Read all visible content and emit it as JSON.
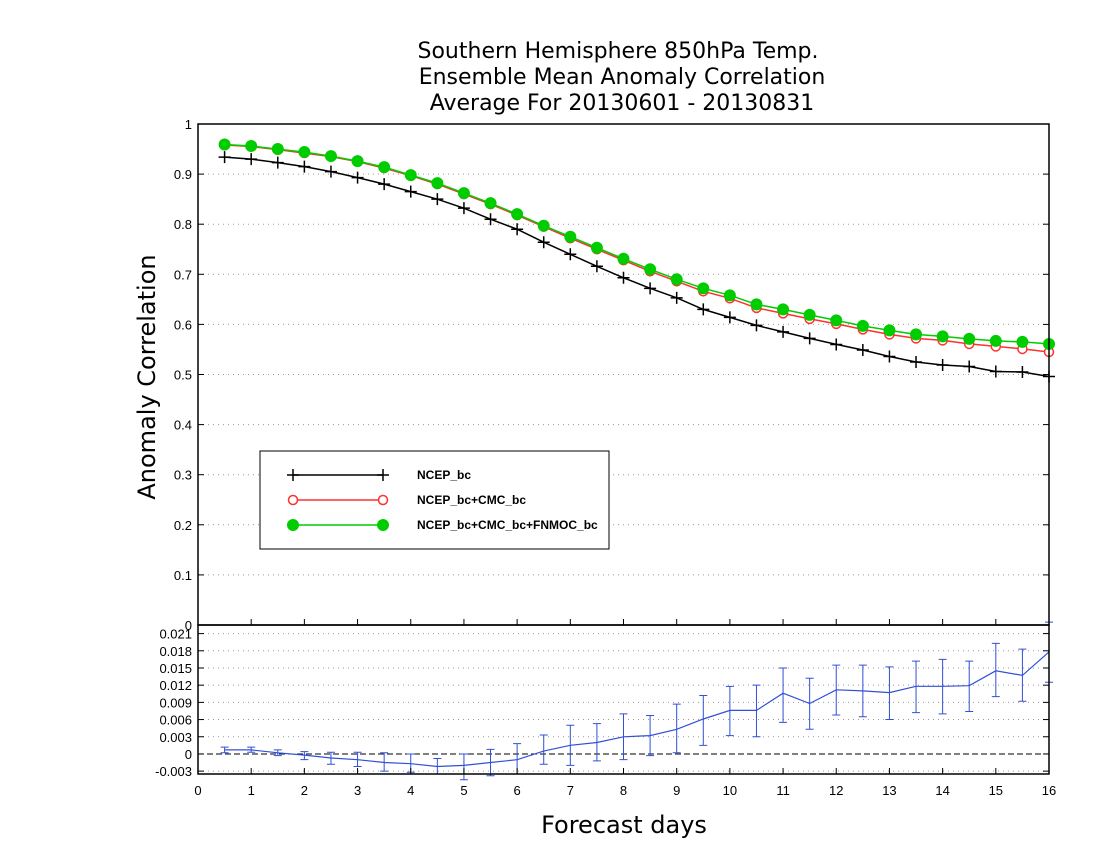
{
  "chart_data": {
    "type": "line",
    "title": [
      "Southern Hemisphere 850hPa Temp.",
      "Ensemble Mean Anomaly Correlation",
      "Average For 20130601 - 20130831"
    ],
    "xlabel": "Forecast days",
    "ylabel": "Anomaly Correlation",
    "xlim": [
      0,
      16
    ],
    "x_ticks": [
      "0",
      "1",
      "2",
      "3",
      "4",
      "5",
      "6",
      "7",
      "8",
      "9",
      "10",
      "11",
      "12",
      "13",
      "14",
      "15",
      "16"
    ],
    "top_panel": {
      "ylim": [
        0,
        1
      ],
      "y_ticks": [
        "0",
        "0.1",
        "0.2",
        "0.3",
        "0.4",
        "0.5",
        "0.6",
        "0.7",
        "0.8",
        "0.9",
        "1"
      ],
      "grid": "dotted horizontal",
      "legend_position": "lower-left",
      "x": [
        0.5,
        1,
        1.5,
        2,
        2.5,
        3,
        3.5,
        4,
        4.5,
        5,
        5.5,
        6,
        6.5,
        7,
        7.5,
        8,
        8.5,
        9,
        9.5,
        10,
        10.5,
        11,
        11.5,
        12,
        12.5,
        13,
        13.5,
        14,
        14.5,
        15,
        15.5,
        16
      ],
      "series": [
        {
          "name": "NCEP_bc",
          "color": "#000000",
          "marker": "plus",
          "values": [
            0.934,
            0.93,
            0.923,
            0.915,
            0.905,
            0.893,
            0.88,
            0.865,
            0.85,
            0.832,
            0.81,
            0.79,
            0.764,
            0.74,
            0.716,
            0.693,
            0.672,
            0.653,
            0.63,
            0.614,
            0.598,
            0.585,
            0.572,
            0.56,
            0.549,
            0.536,
            0.525,
            0.519,
            0.516,
            0.506,
            0.505,
            0.496
          ]
        },
        {
          "name": "NCEP_bc+CMC_bc",
          "color": "#ff3030",
          "marker": "open-circle",
          "values": [
            0.958,
            0.955,
            0.949,
            0.942,
            0.935,
            0.925,
            0.912,
            0.897,
            0.88,
            0.86,
            0.84,
            0.818,
            0.795,
            0.772,
            0.75,
            0.728,
            0.706,
            0.686,
            0.666,
            0.652,
            0.633,
            0.622,
            0.611,
            0.601,
            0.59,
            0.58,
            0.572,
            0.568,
            0.561,
            0.556,
            0.551,
            0.545
          ]
        },
        {
          "name": "NCEP_bc+CMC_bc+FNMOC_bc",
          "color": "#00cc00",
          "marker": "filled-circle",
          "values": [
            0.959,
            0.956,
            0.95,
            0.944,
            0.936,
            0.926,
            0.914,
            0.898,
            0.882,
            0.862,
            0.842,
            0.82,
            0.797,
            0.775,
            0.753,
            0.731,
            0.71,
            0.69,
            0.672,
            0.658,
            0.64,
            0.63,
            0.619,
            0.608,
            0.597,
            0.588,
            0.58,
            0.576,
            0.571,
            0.567,
            0.565,
            0.561
          ]
        }
      ]
    },
    "bottom_panel": {
      "ylim": [
        -0.0035,
        0.0225
      ],
      "y_ticks": [
        "-0.003",
        "0",
        "0.003",
        "0.006",
        "0.009",
        "0.012",
        "0.015",
        "0.018",
        "0.021"
      ],
      "y_tick_values": [
        -0.003,
        0,
        0.003,
        0.006,
        0.009,
        0.012,
        0.015,
        0.018,
        0.021
      ],
      "grid": "dotted horizontal",
      "zero_line": "dashed",
      "series": [
        {
          "color": "#3050d8",
          "x": [
            0.5,
            1,
            1.5,
            2,
            2.5,
            3,
            3.5,
            4,
            4.5,
            5,
            5.5,
            6,
            6.5,
            7,
            7.5,
            8,
            8.5,
            9,
            9.5,
            10,
            10.5,
            11,
            11.5,
            12,
            12.5,
            13,
            13.5,
            14,
            14.5,
            15,
            15.5,
            16
          ],
          "values": [
            0.0007,
            0.0007,
            0.0002,
            -0.0002,
            -0.0007,
            -0.001,
            -0.0015,
            -0.0017,
            -0.0022,
            -0.002,
            -0.0015,
            -0.001,
            0.0005,
            0.0015,
            0.002,
            0.003,
            0.0032,
            0.0043,
            0.0061,
            0.0076,
            0.0076,
            0.0106,
            0.0088,
            0.0112,
            0.011,
            0.0107,
            0.0118,
            0.0118,
            0.0119,
            0.0145,
            0.0137,
            0.0178
          ],
          "err_low": [
            0.0002,
            0.0003,
            -0.0003,
            -0.001,
            -0.0018,
            -0.0022,
            -0.003,
            -0.0032,
            -0.0035,
            -0.0045,
            -0.0038,
            -0.0035,
            -0.0018,
            -0.002,
            -0.0012,
            -0.001,
            -0.0003,
            0.0002,
            0.0015,
            0.0032,
            0.003,
            0.0055,
            0.0043,
            0.0068,
            0.0065,
            0.006,
            0.0072,
            0.007,
            0.0074,
            0.01,
            0.0092,
            0.0125
          ],
          "err_high": [
            0.0012,
            0.0012,
            0.0007,
            0.0004,
            0.0003,
            0.0003,
            0.0002,
            0.0,
            -0.0008,
            0.0,
            0.0008,
            0.0018,
            0.0033,
            0.005,
            0.0053,
            0.007,
            0.0067,
            0.0087,
            0.0102,
            0.0118,
            0.012,
            0.015,
            0.0132,
            0.0155,
            0.0155,
            0.0152,
            0.0162,
            0.0165,
            0.0162,
            0.0193,
            0.0183,
            0.023
          ]
        }
      ]
    }
  }
}
